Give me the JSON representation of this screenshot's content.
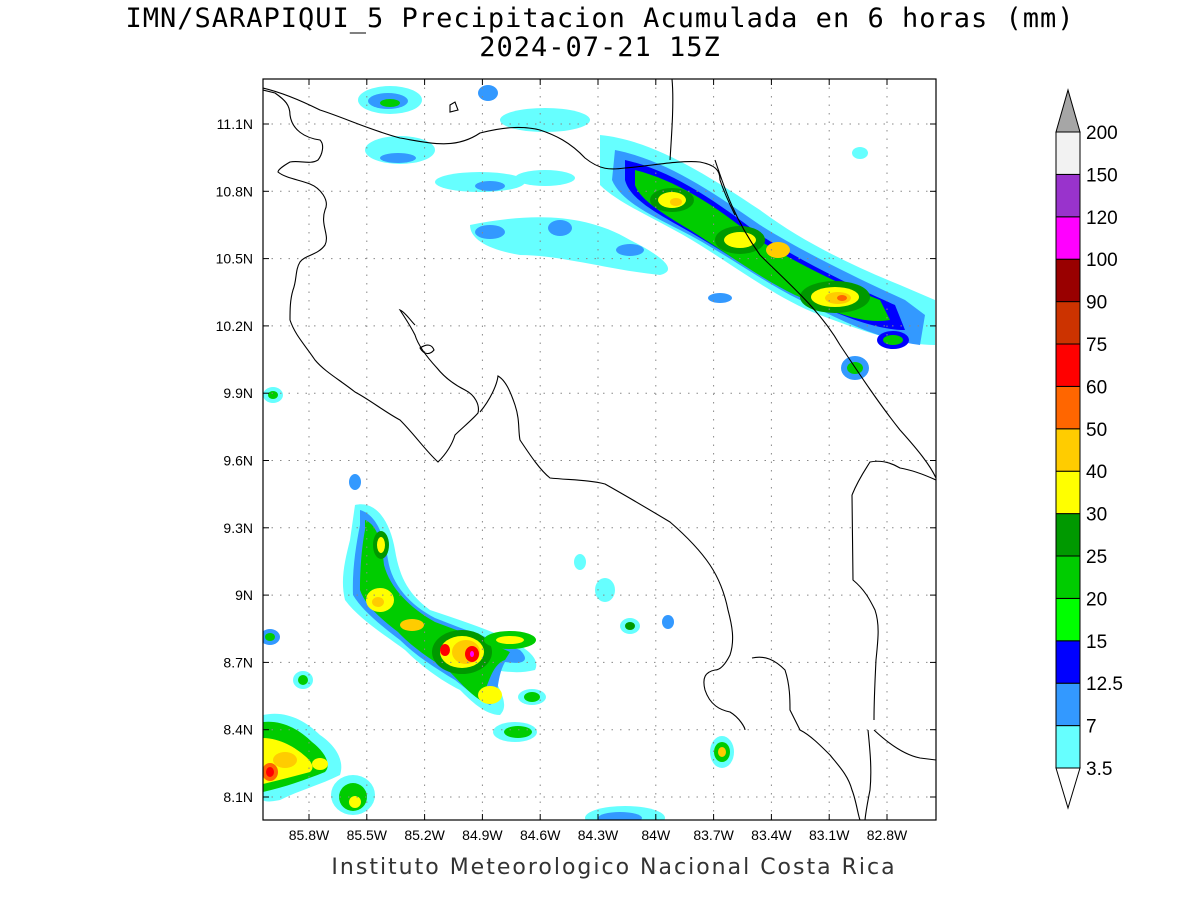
{
  "header": {
    "title_line1": "IMN/SARAPIQUI_5 Precipitacion Acumulada en 6 horas (mm)",
    "title_line2": "2024-07-21 15Z"
  },
  "footer": {
    "credit": "Instituto Meteorologico Nacional Costa Rica"
  },
  "map": {
    "lon_labels": [
      "85.8W",
      "85.5W",
      "85.2W",
      "84.9W",
      "84.6W",
      "84.3W",
      "84W",
      "83.7W",
      "83.4W",
      "83.1W",
      "82.8W"
    ],
    "lat_labels": [
      "11.1N",
      "10.8N",
      "10.5N",
      "10.2N",
      "9.9N",
      "9.6N",
      "9.3N",
      "9N",
      "8.7N",
      "8.4N",
      "8.1N"
    ],
    "grid": "dotted"
  },
  "colorbar": {
    "levels": [
      "3.5",
      "7",
      "12.5",
      "15",
      "20",
      "25",
      "30",
      "40",
      "50",
      "60",
      "75",
      "90",
      "100",
      "120",
      "150",
      "200"
    ],
    "colors": [
      "#66ffff",
      "#3399ff",
      "#0000ff",
      "#00ff00",
      "#00cc00",
      "#009900",
      "#ffff00",
      "#ffcc00",
      "#ff6600",
      "#ff0000",
      "#cc3300",
      "#990000",
      "#ff00ff",
      "#9933cc",
      "#f2f2f2",
      "#a6a6a6"
    ],
    "extend": "both"
  }
}
